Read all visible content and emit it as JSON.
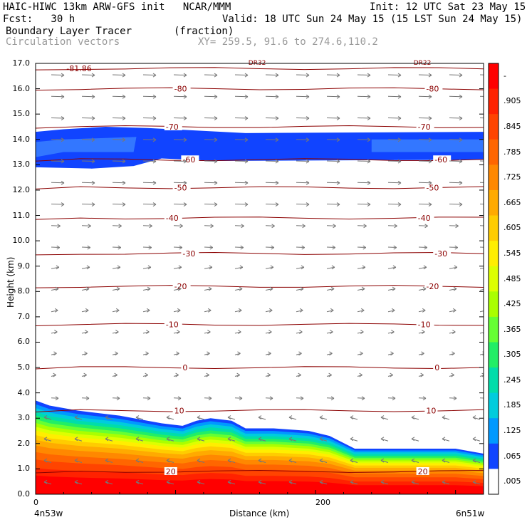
{
  "header": {
    "line1_left": "HAIC-HIWC 13km ARW-GFS init   NCAR/MMM",
    "line1_right": "Init: 12 UTC Sat 23 May 15",
    "fcst": "Fcst:   30 h",
    "valid": "Valid: 18 UTC Sun 24 May 15 (15 LST Sun 24 May 15)",
    "field": "Boundary Layer Tracer       (fraction)",
    "vectors": "Circulation vectors",
    "xy": "XY= 259.5, 91.6 to 274.6,110.2"
  },
  "chart_data": {
    "type": "heatmap",
    "xlabel": "Distance (km)",
    "ylabel": "Height (km)",
    "x_ticks": [
      "0",
      "200"
    ],
    "x_end_labels": {
      "left": "4n53w",
      "right": "6n51w"
    },
    "x_range_km": [
      0,
      320
    ],
    "ylim": [
      0,
      17
    ],
    "y_ticks": [
      "0.0",
      "1.0",
      "2.0",
      "3.0",
      "4.0",
      "5.0",
      "6.0",
      "7.0",
      "8.0",
      "9.0",
      "10.0",
      "11.0",
      "12.0",
      "13.0",
      "14.0",
      "15.0",
      "16.0",
      "17.0"
    ],
    "colorbar": {
      "labels": [
        "-",
        ".905",
        ".845",
        ".785",
        ".725",
        ".665",
        ".605",
        ".545",
        ".485",
        ".425",
        ".365",
        ".305",
        ".245",
        ".185",
        ".125",
        ".065",
        ".005"
      ],
      "colors": [
        "#ff0000",
        "#ff2200",
        "#ff4400",
        "#ff6600",
        "#ff8800",
        "#ffaa00",
        "#ffcc00",
        "#ffee00",
        "#ddff00",
        "#aaff00",
        "#66ff33",
        "#22ee66",
        "#00ddaa",
        "#00ccdd",
        "#0099ff",
        "#1144ff",
        "#ffffff"
      ]
    },
    "boundary_layer_top_km": [
      {
        "x": 0,
        "y": 3.7
      },
      {
        "x": 10,
        "y": 3.5
      },
      {
        "x": 30,
        "y": 3.3
      },
      {
        "x": 60,
        "y": 3.1
      },
      {
        "x": 90,
        "y": 2.8
      },
      {
        "x": 105,
        "y": 2.7
      },
      {
        "x": 115,
        "y": 2.9
      },
      {
        "x": 125,
        "y": 3.0
      },
      {
        "x": 140,
        "y": 2.9
      },
      {
        "x": 150,
        "y": 2.6
      },
      {
        "x": 170,
        "y": 2.6
      },
      {
        "x": 195,
        "y": 2.5
      },
      {
        "x": 210,
        "y": 2.3
      },
      {
        "x": 228,
        "y": 1.8
      },
      {
        "x": 250,
        "y": 1.8
      },
      {
        "x": 300,
        "y": 1.8
      },
      {
        "x": 320,
        "y": 1.6
      }
    ],
    "upper_layer_km": {
      "bottom": 12.9,
      "top": 14.3
    },
    "contours": [
      {
        "label": "-81.86",
        "y": 16.8
      },
      {
        "label": "-80",
        "y": 16.0
      },
      {
        "label": "-70",
        "y": 14.5
      },
      {
        "label": "-60",
        "y": 13.2
      },
      {
        "label": "-50",
        "y": 12.1
      },
      {
        "label": "-40",
        "y": 10.9
      },
      {
        "label": "-30",
        "y": 9.5
      },
      {
        "label": "-20",
        "y": 8.2
      },
      {
        "label": "-10",
        "y": 6.7
      },
      {
        "label": "0",
        "y": 5.0
      },
      {
        "label": "10",
        "y": 3.3
      },
      {
        "label": "20",
        "y": 0.9
      }
    ],
    "top_markers": [
      "DR32",
      "DR22"
    ]
  }
}
